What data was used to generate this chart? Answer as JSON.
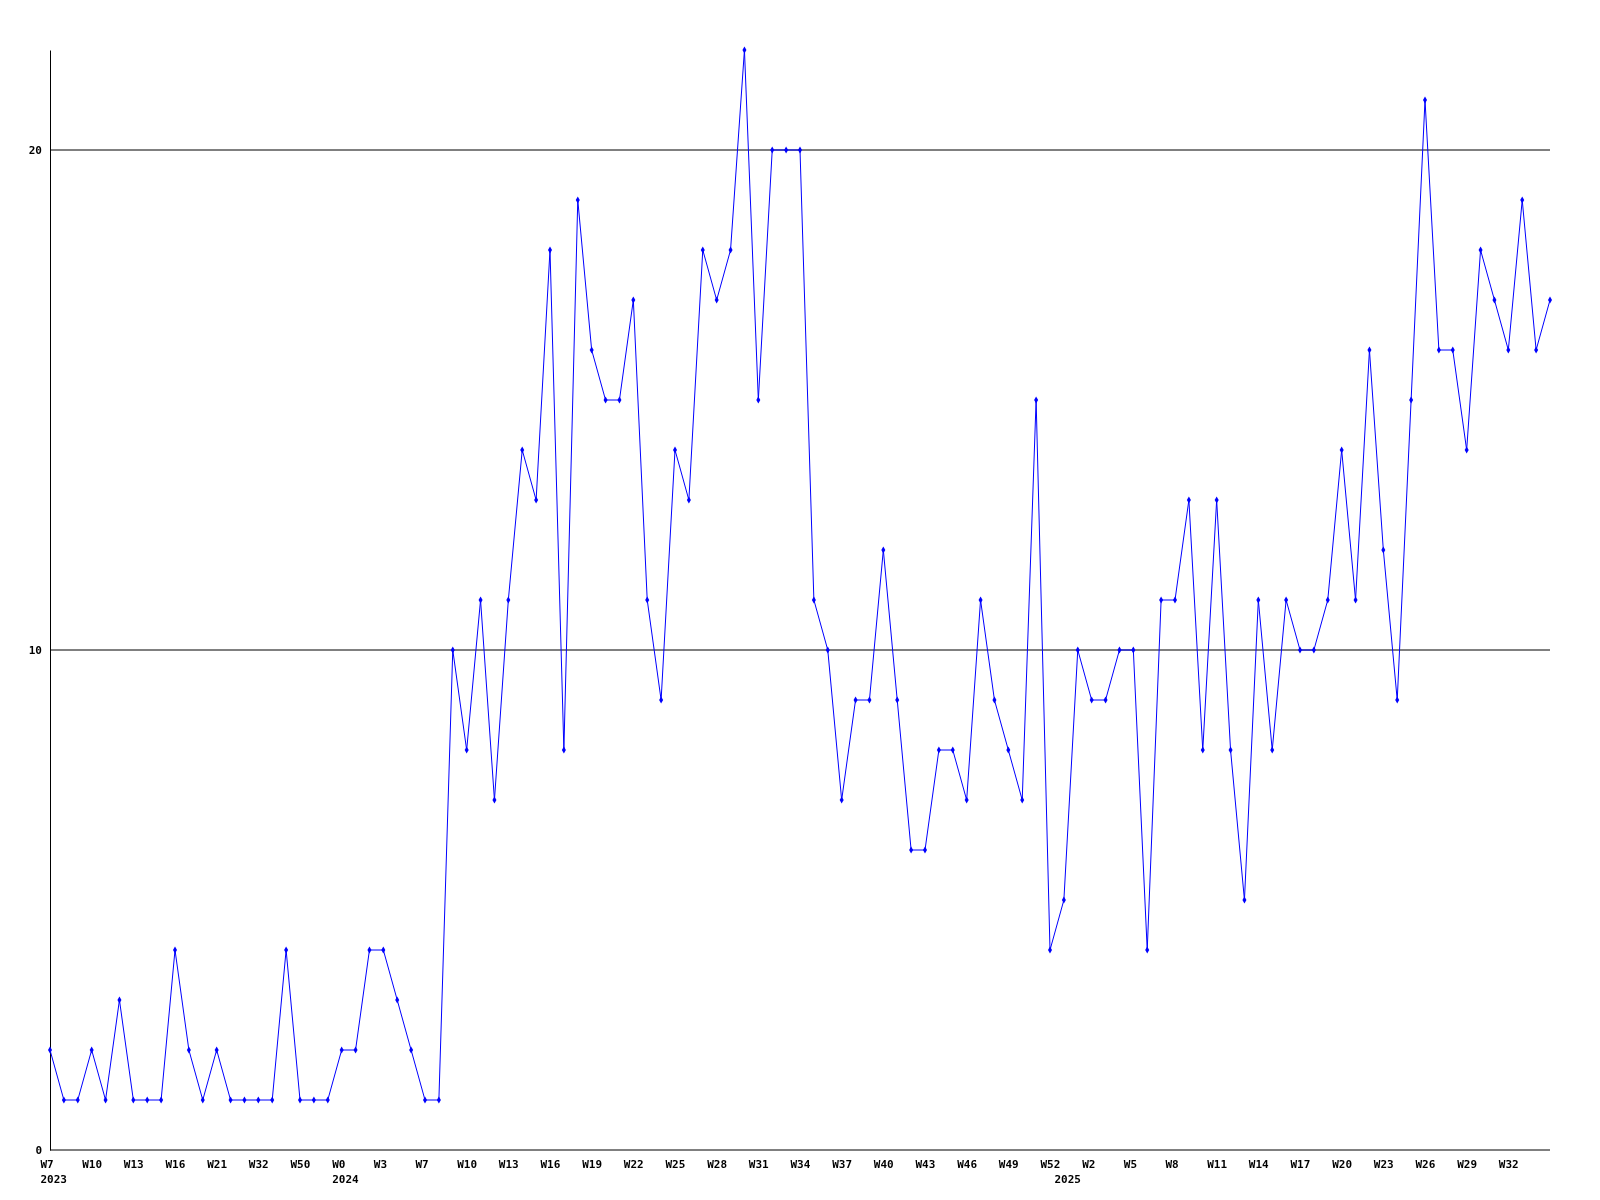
{
  "chart_data": {
    "type": "line",
    "categories": [
      "W7\n2023",
      null,
      null,
      "W10",
      null,
      null,
      "W13",
      null,
      null,
      "W16",
      null,
      null,
      "W21",
      null,
      null,
      "W32",
      null,
      null,
      "W50",
      null,
      null,
      "W0\n2024",
      null,
      null,
      "W3",
      null,
      null,
      "W7",
      null,
      null,
      "W10",
      null,
      null,
      "W13",
      null,
      null,
      "W16",
      null,
      null,
      "W19",
      null,
      null,
      "W22",
      null,
      null,
      "W25",
      null,
      null,
      "W28",
      null,
      null,
      "W31",
      null,
      null,
      "W34",
      null,
      null,
      "W37",
      null,
      null,
      "W40",
      null,
      null,
      "W43",
      null,
      null,
      "W46",
      null,
      null,
      "W49",
      null,
      null,
      "W52",
      "\n2025",
      null,
      "W2",
      null,
      null,
      "W5",
      null,
      null,
      "W8",
      null,
      null,
      "W11",
      null,
      null,
      "W14",
      null,
      null,
      "W17",
      null,
      null,
      "W20",
      null,
      null,
      "W23",
      null,
      null,
      "W26",
      null,
      null,
      "W29",
      null,
      null,
      "W32",
      null,
      null,
      null
    ],
    "series": [
      {
        "color": "#0000ff",
        "values": [
          2,
          1,
          1,
          2,
          1,
          3,
          1,
          1,
          1,
          4,
          2,
          1,
          2,
          1,
          1,
          1,
          1,
          4,
          1,
          1,
          1,
          2,
          2,
          4,
          4,
          3,
          2,
          1,
          1,
          10,
          8,
          11,
          7,
          11,
          14,
          13,
          18,
          8,
          19,
          16,
          15,
          15,
          17,
          11,
          9,
          14,
          13,
          18,
          17,
          18,
          22,
          15,
          20,
          20,
          20,
          11,
          10,
          7,
          9,
          9,
          12,
          9,
          6,
          6,
          8,
          8,
          7,
          11,
          9,
          8,
          7,
          15,
          4,
          5,
          10,
          9,
          9,
          10,
          10,
          4,
          11,
          11,
          13,
          8,
          13,
          8,
          5,
          11,
          8,
          11,
          10,
          10,
          11,
          14,
          11,
          16,
          12,
          9,
          15,
          21,
          16,
          16,
          14,
          18,
          17,
          16,
          19,
          16,
          17
        ]
      }
    ],
    "ylim": [
      0,
      22
    ],
    "yticks": [
      0,
      10,
      20
    ],
    "grid": "y",
    "marker": "diamond",
    "line_style": "solid"
  }
}
